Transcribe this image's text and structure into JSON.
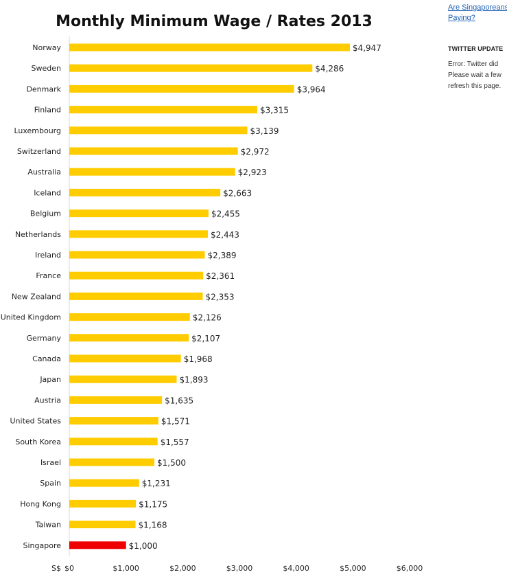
{
  "chart_data": {
    "type": "bar",
    "orientation": "horizontal",
    "title": "Monthly Minimum Wage / Rates 2013",
    "xlabel": "",
    "ylabel": "",
    "currency_label": "S$",
    "xlim": [
      0,
      6000
    ],
    "x_ticks": [
      "$0",
      "$1,000",
      "$2,000",
      "$3,000",
      "$4,000",
      "$5,000",
      "$6,000"
    ],
    "categories": [
      "Norway",
      "Sweden",
      "Denmark",
      "Finland",
      "Luxembourg",
      "Switzerland",
      "Australia",
      "Iceland",
      "Belgium",
      "Netherlands",
      "Ireland",
      "France",
      "New Zealand",
      "United Kingdom",
      "Germany",
      "Canada",
      "Japan",
      "Austria",
      "United States",
      "South Korea",
      "Israel",
      "Spain",
      "Hong Kong",
      "Taiwan",
      "Singapore"
    ],
    "values": [
      4947,
      4286,
      3964,
      3315,
      3139,
      2972,
      2923,
      2663,
      2455,
      2443,
      2389,
      2361,
      2353,
      2126,
      2107,
      1968,
      1893,
      1635,
      1571,
      1557,
      1500,
      1231,
      1175,
      1168,
      1000
    ],
    "value_labels": [
      "$4,947",
      "$4,286",
      "$3,964",
      "$3,315",
      "$3,139",
      "$2,972",
      "$2,923",
      "$2,663",
      "$2,455",
      "$2,443",
      "$2,389",
      "$2,361",
      "$2,353",
      "$2,126",
      "$2,107",
      "$1,968",
      "$1,893",
      "$1,635",
      "$1,571",
      "$1,557",
      "$1,500",
      "$1,231",
      "$1,175",
      "$1,168",
      "$1,000"
    ],
    "highlight": "Singapore",
    "grid": false,
    "colors": {
      "bar": "#FFCC00",
      "highlight": "#EE0000",
      "axis": "#D9D9D9"
    }
  },
  "sidebar": {
    "link_line1": "Are Singaporeans",
    "link_line2": "Paying?",
    "twitter_heading": "TWITTER UPDATE",
    "error_line1": "Error: Twitter did",
    "error_line2": "Please wait a few",
    "error_line3": "refresh this page."
  }
}
